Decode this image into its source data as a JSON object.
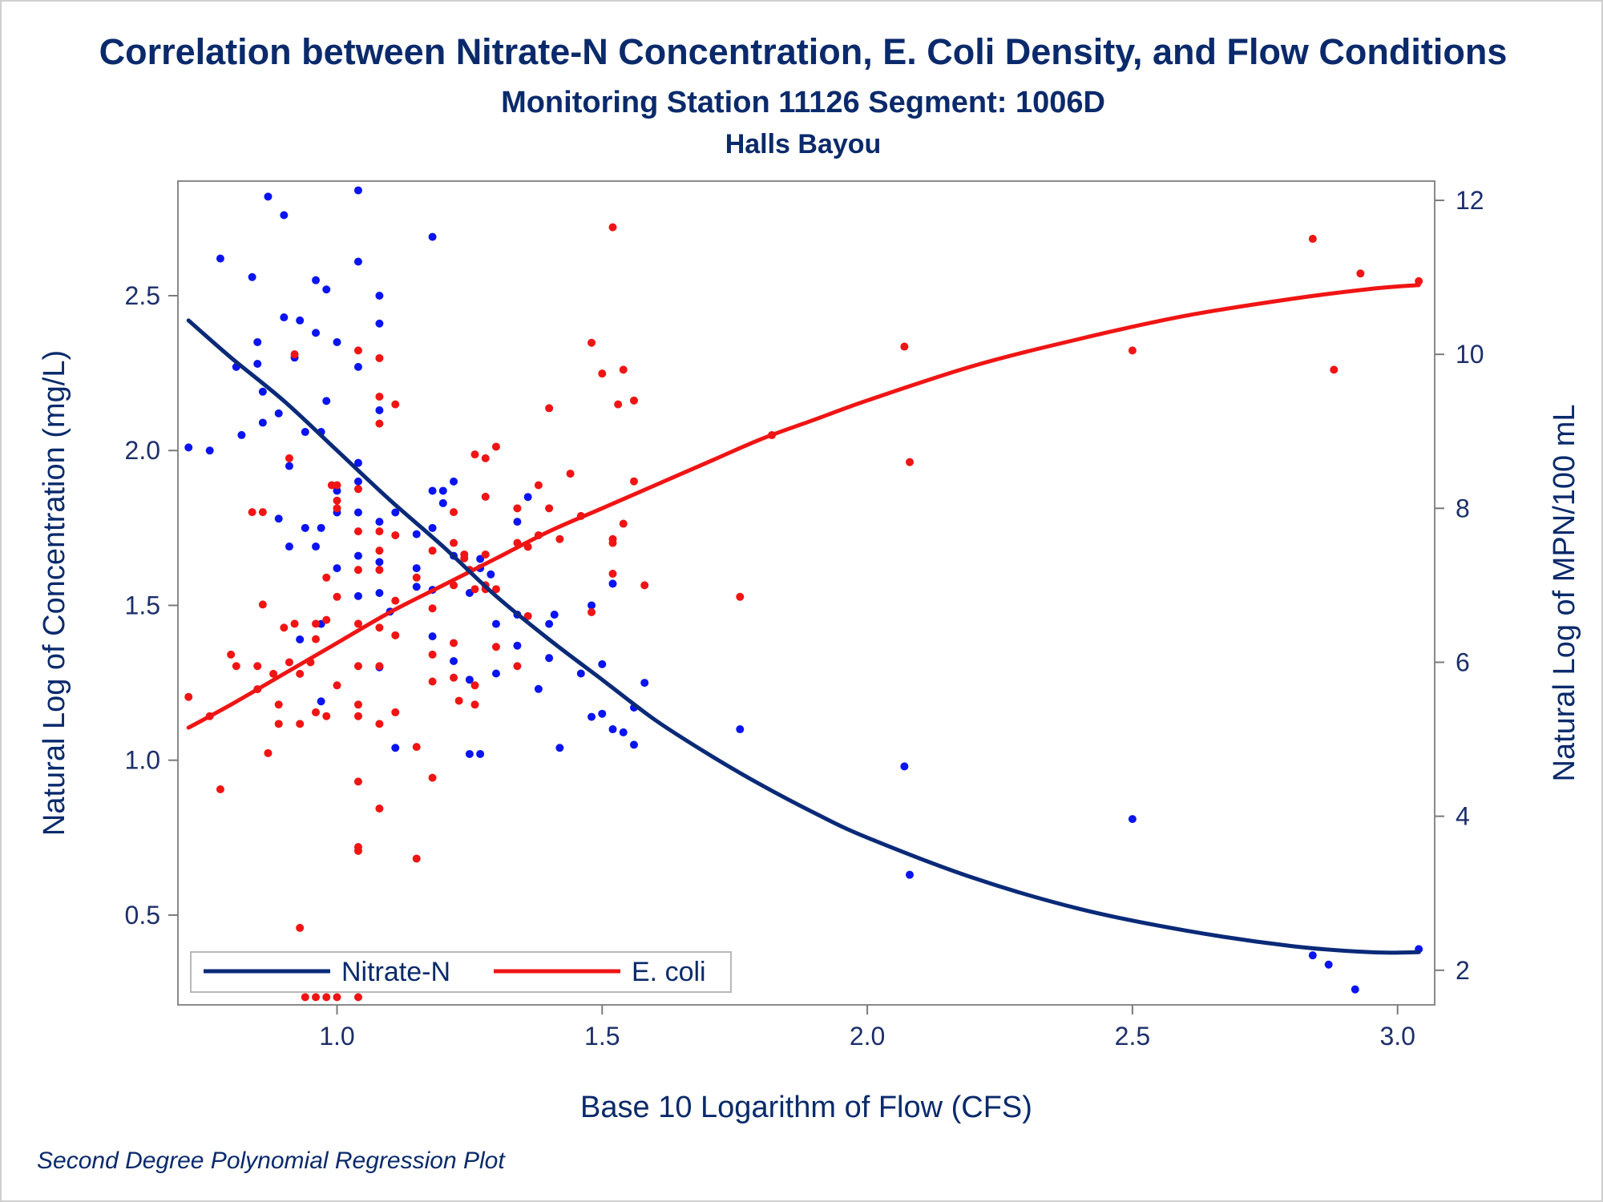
{
  "colors": {
    "nitrate": "#0a2a78",
    "nitrate_points": "#0a14f0",
    "ecoli": "#f01414",
    "text": "#0a2a6b",
    "axis": "#7a7a7a"
  },
  "footnote": "Second Degree Polynomial Regression Plot",
  "chart_data": {
    "type": "scatter",
    "title": "Correlation between Nitrate-N Concentration, E. Coli Density, and Flow Conditions",
    "subtitle": "Monitoring Station 11126 Segment: 1006D",
    "subtitle2": "Halls Bayou",
    "xlabel": "Base 10 Logarithm of Flow (CFS)",
    "ylabel_left": "Natural Log of Concentration (mg/L)",
    "ylabel_right": "Natural Log of MPN/100 mL",
    "xlim": [
      0.7,
      3.07
    ],
    "ylim_left": [
      0.21,
      2.87
    ],
    "ylim_right": [
      1.55,
      12.25
    ],
    "x_ticks": [
      "1.0",
      "1.5",
      "2.0",
      "2.5",
      "3.0"
    ],
    "y_left_ticks": [
      "0.5",
      "1.0",
      "1.5",
      "2.0",
      "2.5"
    ],
    "y_right_ticks": [
      "2",
      "4",
      "6",
      "8",
      "10",
      "12"
    ],
    "grid": false,
    "legend_position": "bottom-left",
    "legend": [
      "Nitrate-N",
      "E. coli"
    ],
    "series": [
      {
        "name": "Nitrate-N",
        "axis": "left",
        "curve": [
          [
            0.72,
            2.42
          ],
          [
            0.8,
            2.3
          ],
          [
            0.9,
            2.16
          ],
          [
            1.0,
            2.0
          ],
          [
            1.1,
            1.84
          ],
          [
            1.2,
            1.69
          ],
          [
            1.3,
            1.53
          ],
          [
            1.4,
            1.39
          ],
          [
            1.5,
            1.26
          ],
          [
            1.6,
            1.13
          ],
          [
            1.7,
            1.02
          ],
          [
            1.8,
            0.92
          ],
          [
            1.9,
            0.83
          ],
          [
            2.0,
            0.75
          ],
          [
            2.2,
            0.62
          ],
          [
            2.4,
            0.52
          ],
          [
            2.6,
            0.45
          ],
          [
            2.8,
            0.4
          ],
          [
            2.95,
            0.38
          ],
          [
            3.04,
            0.38
          ]
        ],
        "points": [
          [
            0.72,
            2.01
          ],
          [
            0.76,
            2.0
          ],
          [
            0.78,
            2.62
          ],
          [
            0.81,
            2.27
          ],
          [
            0.82,
            2.05
          ],
          [
            0.84,
            2.56
          ],
          [
            0.85,
            2.28
          ],
          [
            0.85,
            2.35
          ],
          [
            0.86,
            2.19
          ],
          [
            0.86,
            2.09
          ],
          [
            0.87,
            2.82
          ],
          [
            0.89,
            2.12
          ],
          [
            0.89,
            1.78
          ],
          [
            0.9,
            2.76
          ],
          [
            0.9,
            2.43
          ],
          [
            0.91,
            1.95
          ],
          [
            0.91,
            1.69
          ],
          [
            0.92,
            2.3
          ],
          [
            0.93,
            2.42
          ],
          [
            0.93,
            1.39
          ],
          [
            0.94,
            1.75
          ],
          [
            0.94,
            2.06
          ],
          [
            0.96,
            2.38
          ],
          [
            0.96,
            2.55
          ],
          [
            0.96,
            1.69
          ],
          [
            0.97,
            1.75
          ],
          [
            0.97,
            2.06
          ],
          [
            0.97,
            1.44
          ],
          [
            0.97,
            1.19
          ],
          [
            0.98,
            2.16
          ],
          [
            0.98,
            2.52
          ],
          [
            1.0,
            2.35
          ],
          [
            1.0,
            1.87
          ],
          [
            1.0,
            1.8
          ],
          [
            1.0,
            1.62
          ],
          [
            1.04,
            2.84
          ],
          [
            1.04,
            2.61
          ],
          [
            1.04,
            2.27
          ],
          [
            1.04,
            1.96
          ],
          [
            1.04,
            1.9
          ],
          [
            1.04,
            1.8
          ],
          [
            1.04,
            1.66
          ],
          [
            1.04,
            1.53
          ],
          [
            1.08,
            2.5
          ],
          [
            1.08,
            2.41
          ],
          [
            1.08,
            2.13
          ],
          [
            1.08,
            1.77
          ],
          [
            1.08,
            1.64
          ],
          [
            1.08,
            1.54
          ],
          [
            1.08,
            1.3
          ],
          [
            1.1,
            1.48
          ],
          [
            1.11,
            1.8
          ],
          [
            1.11,
            1.04
          ],
          [
            1.15,
            1.62
          ],
          [
            1.15,
            1.73
          ],
          [
            1.15,
            1.56
          ],
          [
            1.18,
            1.87
          ],
          [
            1.18,
            1.75
          ],
          [
            1.18,
            2.69
          ],
          [
            1.18,
            1.55
          ],
          [
            1.18,
            1.4
          ],
          [
            1.2,
            1.83
          ],
          [
            1.2,
            1.87
          ],
          [
            1.22,
            1.9
          ],
          [
            1.22,
            1.66
          ],
          [
            1.22,
            1.32
          ],
          [
            1.25,
            1.54
          ],
          [
            1.25,
            1.26
          ],
          [
            1.25,
            1.02
          ],
          [
            1.27,
            1.65
          ],
          [
            1.27,
            1.62
          ],
          [
            1.27,
            1.02
          ],
          [
            1.29,
            1.6
          ],
          [
            1.3,
            1.28
          ],
          [
            1.3,
            1.44
          ],
          [
            1.34,
            1.37
          ],
          [
            1.34,
            1.77
          ],
          [
            1.34,
            1.47
          ],
          [
            1.36,
            1.85
          ],
          [
            1.38,
            1.23
          ],
          [
            1.4,
            1.44
          ],
          [
            1.4,
            1.33
          ],
          [
            1.41,
            1.47
          ],
          [
            1.42,
            1.04
          ],
          [
            1.46,
            1.28
          ],
          [
            1.48,
            1.5
          ],
          [
            1.48,
            1.14
          ],
          [
            1.5,
            1.31
          ],
          [
            1.5,
            1.15
          ],
          [
            1.52,
            1.57
          ],
          [
            1.52,
            1.1
          ],
          [
            1.54,
            1.09
          ],
          [
            1.56,
            1.05
          ],
          [
            1.56,
            1.17
          ],
          [
            1.58,
            1.25
          ],
          [
            1.76,
            1.1
          ],
          [
            2.07,
            0.98
          ],
          [
            2.08,
            0.63
          ],
          [
            2.5,
            0.81
          ],
          [
            2.84,
            0.37
          ],
          [
            2.87,
            0.34
          ],
          [
            2.92,
            0.26
          ],
          [
            3.04,
            0.39
          ]
        ]
      },
      {
        "name": "E. coli",
        "axis": "right",
        "curve": [
          [
            0.72,
            5.15
          ],
          [
            0.8,
            5.45
          ],
          [
            0.9,
            5.85
          ],
          [
            1.0,
            6.25
          ],
          [
            1.1,
            6.65
          ],
          [
            1.2,
            7.0
          ],
          [
            1.3,
            7.35
          ],
          [
            1.4,
            7.7
          ],
          [
            1.5,
            8.0
          ],
          [
            1.6,
            8.3
          ],
          [
            1.7,
            8.6
          ],
          [
            1.8,
            8.9
          ],
          [
            1.9,
            9.15
          ],
          [
            2.0,
            9.4
          ],
          [
            2.2,
            9.85
          ],
          [
            2.4,
            10.2
          ],
          [
            2.6,
            10.5
          ],
          [
            2.8,
            10.72
          ],
          [
            2.95,
            10.85
          ],
          [
            3.04,
            10.9
          ]
        ],
        "points": [
          [
            0.72,
            5.55
          ],
          [
            0.76,
            5.3
          ],
          [
            0.78,
            4.35
          ],
          [
            0.8,
            6.1
          ],
          [
            0.81,
            5.95
          ],
          [
            0.84,
            7.95
          ],
          [
            0.85,
            5.95
          ],
          [
            0.85,
            5.65
          ],
          [
            0.86,
            6.75
          ],
          [
            0.86,
            7.95
          ],
          [
            0.87,
            4.82
          ],
          [
            0.88,
            5.85
          ],
          [
            0.89,
            5.45
          ],
          [
            0.89,
            5.2
          ],
          [
            0.9,
            6.45
          ],
          [
            0.91,
            6.0
          ],
          [
            0.91,
            8.65
          ],
          [
            0.92,
            10.0
          ],
          [
            0.92,
            6.5
          ],
          [
            0.93,
            5.85
          ],
          [
            0.93,
            5.2
          ],
          [
            0.93,
            2.55
          ],
          [
            0.94,
            1.65
          ],
          [
            0.95,
            6.0
          ],
          [
            0.96,
            6.3
          ],
          [
            0.96,
            6.5
          ],
          [
            0.96,
            5.35
          ],
          [
            0.96,
            1.65
          ],
          [
            0.98,
            7.1
          ],
          [
            0.98,
            6.55
          ],
          [
            0.98,
            5.3
          ],
          [
            0.98,
            1.65
          ],
          [
            0.99,
            8.3
          ],
          [
            1.0,
            6.85
          ],
          [
            1.0,
            8.0
          ],
          [
            1.0,
            8.1
          ],
          [
            1.0,
            8.3
          ],
          [
            1.0,
            5.7
          ],
          [
            1.0,
            1.65
          ],
          [
            1.04,
            10.05
          ],
          [
            1.04,
            8.25
          ],
          [
            1.04,
            7.7
          ],
          [
            1.04,
            7.2
          ],
          [
            1.04,
            6.5
          ],
          [
            1.04,
            5.95
          ],
          [
            1.04,
            5.45
          ],
          [
            1.04,
            5.3
          ],
          [
            1.04,
            4.45
          ],
          [
            1.04,
            3.6
          ],
          [
            1.04,
            3.55
          ],
          [
            1.04,
            1.65
          ],
          [
            1.08,
            9.95
          ],
          [
            1.08,
            9.45
          ],
          [
            1.08,
            9.1
          ],
          [
            1.08,
            7.7
          ],
          [
            1.08,
            7.45
          ],
          [
            1.08,
            7.2
          ],
          [
            1.08,
            6.45
          ],
          [
            1.08,
            5.95
          ],
          [
            1.08,
            5.2
          ],
          [
            1.08,
            4.1
          ],
          [
            1.11,
            9.35
          ],
          [
            1.11,
            7.65
          ],
          [
            1.11,
            6.35
          ],
          [
            1.11,
            5.35
          ],
          [
            1.11,
            6.8
          ],
          [
            1.15,
            7.1
          ],
          [
            1.15,
            4.9
          ],
          [
            1.15,
            3.45
          ],
          [
            1.18,
            7.45
          ],
          [
            1.18,
            6.7
          ],
          [
            1.18,
            6.1
          ],
          [
            1.18,
            5.75
          ],
          [
            1.18,
            4.5
          ],
          [
            1.22,
            7.0
          ],
          [
            1.22,
            7.95
          ],
          [
            1.22,
            7.55
          ],
          [
            1.22,
            6.25
          ],
          [
            1.22,
            5.8
          ],
          [
            1.23,
            5.5
          ],
          [
            1.24,
            7.35
          ],
          [
            1.24,
            7.4
          ],
          [
            1.25,
            7.2
          ],
          [
            1.26,
            8.7
          ],
          [
            1.26,
            6.95
          ],
          [
            1.26,
            5.7
          ],
          [
            1.26,
            5.45
          ],
          [
            1.28,
            8.65
          ],
          [
            1.28,
            8.15
          ],
          [
            1.28,
            7.4
          ],
          [
            1.28,
            7.0
          ],
          [
            1.28,
            6.95
          ],
          [
            1.3,
            8.8
          ],
          [
            1.3,
            6.95
          ],
          [
            1.3,
            6.2
          ],
          [
            1.34,
            8.0
          ],
          [
            1.34,
            7.55
          ],
          [
            1.34,
            5.95
          ],
          [
            1.36,
            7.5
          ],
          [
            1.36,
            6.6
          ],
          [
            1.38,
            8.3
          ],
          [
            1.38,
            7.65
          ],
          [
            1.4,
            9.3
          ],
          [
            1.4,
            8.0
          ],
          [
            1.42,
            7.6
          ],
          [
            1.44,
            8.45
          ],
          [
            1.46,
            7.9
          ],
          [
            1.48,
            10.15
          ],
          [
            1.48,
            6.65
          ],
          [
            1.5,
            9.75
          ],
          [
            1.52,
            11.65
          ],
          [
            1.52,
            7.6
          ],
          [
            1.52,
            7.55
          ],
          [
            1.52,
            7.15
          ],
          [
            1.53,
            9.35
          ],
          [
            1.54,
            9.8
          ],
          [
            1.54,
            7.8
          ],
          [
            1.56,
            9.4
          ],
          [
            1.56,
            8.35
          ],
          [
            1.58,
            7.0
          ],
          [
            1.76,
            6.85
          ],
          [
            1.82,
            8.95
          ],
          [
            2.07,
            10.1
          ],
          [
            2.08,
            8.6
          ],
          [
            2.5,
            10.05
          ],
          [
            2.84,
            11.5
          ],
          [
            2.88,
            9.8
          ],
          [
            2.93,
            11.05
          ],
          [
            3.04,
            10.95
          ]
        ]
      }
    ]
  }
}
